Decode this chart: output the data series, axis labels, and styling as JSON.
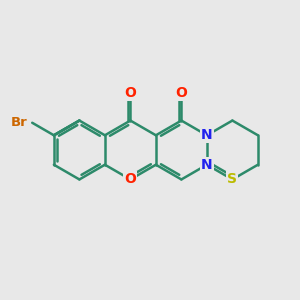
{
  "bg_color": "#e8e8e8",
  "bond_color": "#2d8a6a",
  "O_color": "#ff2200",
  "N_color": "#2222ee",
  "S_color": "#bbbb00",
  "Br_color": "#cc6600",
  "line_width": 1.8,
  "figsize": [
    3.0,
    3.0
  ],
  "dpi": 100,
  "xlim": [
    -5.2,
    4.8
  ],
  "ylim": [
    -2.8,
    2.8
  ]
}
